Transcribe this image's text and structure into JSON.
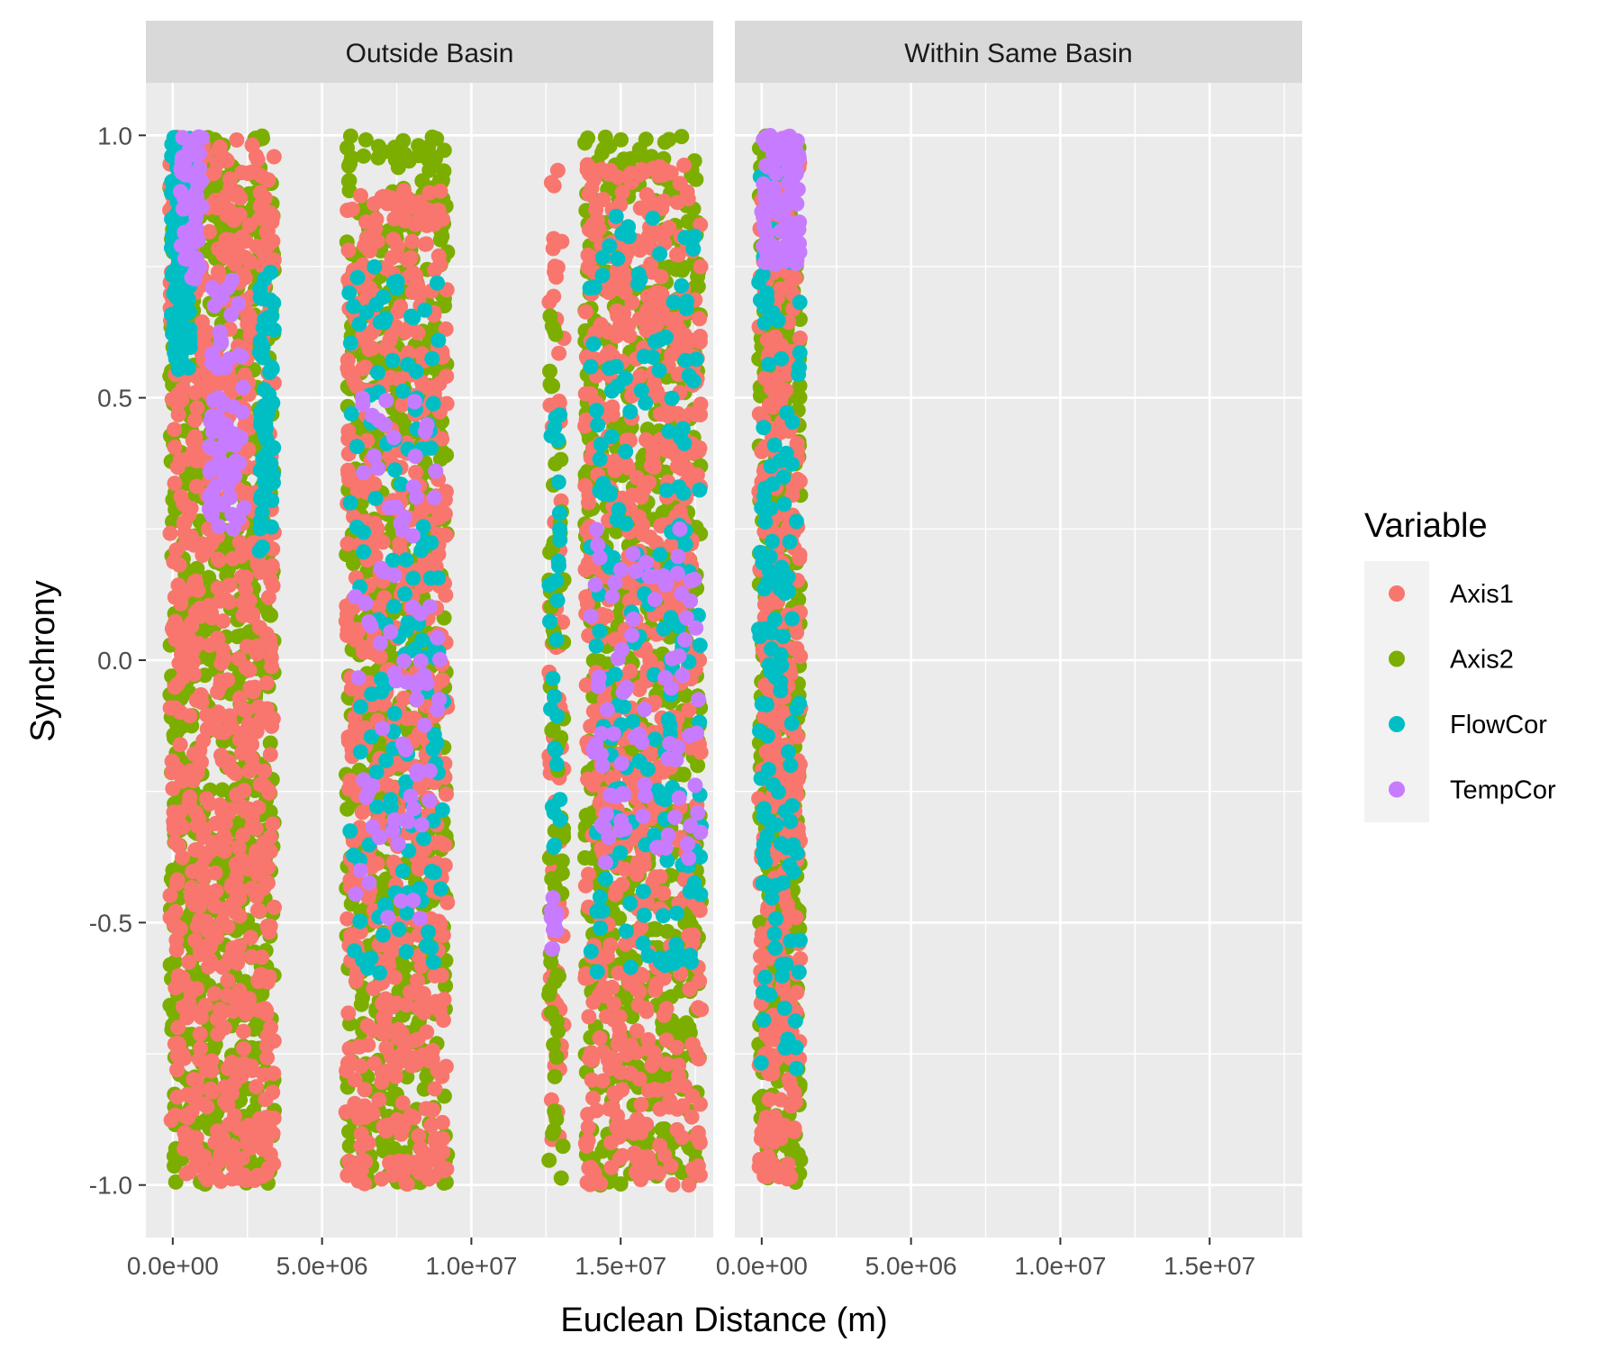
{
  "chart_data": {
    "type": "scatter",
    "xlabel": "Euclean Distance (m)",
    "ylabel": "Synchrony",
    "ylim": [
      -1.1,
      1.1
    ],
    "y_ticks": [
      -1.0,
      -0.5,
      0.0,
      0.5,
      1.0
    ],
    "y_tick_labels": [
      "-1.0",
      "-0.5",
      "0.0",
      "0.5",
      "1.0"
    ],
    "x_ticks": [
      0,
      5000000,
      10000000,
      15000000
    ],
    "x_tick_labels": [
      "0.0e+00",
      "5.0e+06",
      "1.0e+07",
      "1.5e+07"
    ],
    "xlim": [
      -900000,
      18100000
    ],
    "grid": true,
    "legend": {
      "title": "Variable",
      "position": "right",
      "entries": [
        {
          "name": "Axis1",
          "color": "#F8766D"
        },
        {
          "name": "Axis2",
          "color": "#7CAE00"
        },
        {
          "name": "FlowCor",
          "color": "#00BFC4"
        },
        {
          "name": "TempCor",
          "color": "#C77CFF"
        }
      ]
    },
    "facets": [
      {
        "label": "Outside Basin",
        "bands": [
          {
            "series": "Axis2",
            "x": [
              -100000,
              3400000
            ],
            "y": [
              -1.0,
              1.0
            ],
            "n": 900
          },
          {
            "series": "Axis1",
            "x": [
              -100000,
              3400000
            ],
            "y": [
              -1.0,
              1.0
            ],
            "n": 800
          },
          {
            "series": "FlowCor",
            "x": [
              -50000,
              600000
            ],
            "y": [
              0.55,
              1.0
            ],
            "n": 120
          },
          {
            "series": "FlowCor",
            "x": [
              2900000,
              3400000
            ],
            "y": [
              0.2,
              0.75
            ],
            "n": 60
          },
          {
            "series": "TempCor",
            "x": [
              200000,
              1000000
            ],
            "y": [
              0.72,
              1.0
            ],
            "n": 60
          },
          {
            "series": "TempCor",
            "x": [
              1200000,
              2400000
            ],
            "y": [
              0.25,
              0.75
            ],
            "n": 70
          },
          {
            "series": "Axis2",
            "x": [
              5800000,
              9200000
            ],
            "y": [
              -1.0,
              1.0
            ],
            "n": 750
          },
          {
            "series": "Axis1",
            "x": [
              5800000,
              9200000
            ],
            "y": [
              -1.0,
              0.9
            ],
            "n": 650
          },
          {
            "series": "FlowCor",
            "x": [
              5900000,
              9200000
            ],
            "y": [
              -0.6,
              0.75
            ],
            "n": 140
          },
          {
            "series": "TempCor",
            "x": [
              6000000,
              9000000
            ],
            "y": [
              -0.5,
              0.5
            ],
            "n": 80
          },
          {
            "series": "Axis1",
            "x": [
              12600000,
              13100000
            ],
            "y": [
              -0.95,
              0.95
            ],
            "n": 90
          },
          {
            "series": "Axis2",
            "x": [
              12600000,
              13100000
            ],
            "y": [
              -1.0,
              0.7
            ],
            "n": 70
          },
          {
            "series": "FlowCor",
            "x": [
              12600000,
              13000000
            ],
            "y": [
              -0.4,
              0.6
            ],
            "n": 30
          },
          {
            "series": "TempCor",
            "x": [
              12600000,
              12900000
            ],
            "y": [
              -0.55,
              -0.45
            ],
            "n": 12
          },
          {
            "series": "Axis2",
            "x": [
              13800000,
              17700000
            ],
            "y": [
              -1.0,
              1.0
            ],
            "n": 850
          },
          {
            "series": "Axis1",
            "x": [
              13800000,
              17700000
            ],
            "y": [
              -1.0,
              0.95
            ],
            "n": 700
          },
          {
            "series": "FlowCor",
            "x": [
              13900000,
              17700000
            ],
            "y": [
              -0.6,
              0.85
            ],
            "n": 180
          },
          {
            "series": "TempCor",
            "x": [
              14000000,
              17700000
            ],
            "y": [
              -0.4,
              0.25
            ],
            "n": 90
          }
        ]
      },
      {
        "label": "Within Same Basin",
        "bands": [
          {
            "series": "Axis2",
            "x": [
              -100000,
              1300000
            ],
            "y": [
              -1.0,
              1.0
            ],
            "n": 450
          },
          {
            "series": "Axis1",
            "x": [
              -100000,
              1300000
            ],
            "y": [
              -1.0,
              0.95
            ],
            "n": 380
          },
          {
            "series": "FlowCor",
            "x": [
              -100000,
              1300000
            ],
            "y": [
              -0.8,
              0.95
            ],
            "n": 140
          },
          {
            "series": "TempCor",
            "x": [
              0,
              1300000
            ],
            "y": [
              0.75,
              1.0
            ],
            "n": 80
          }
        ]
      }
    ]
  }
}
